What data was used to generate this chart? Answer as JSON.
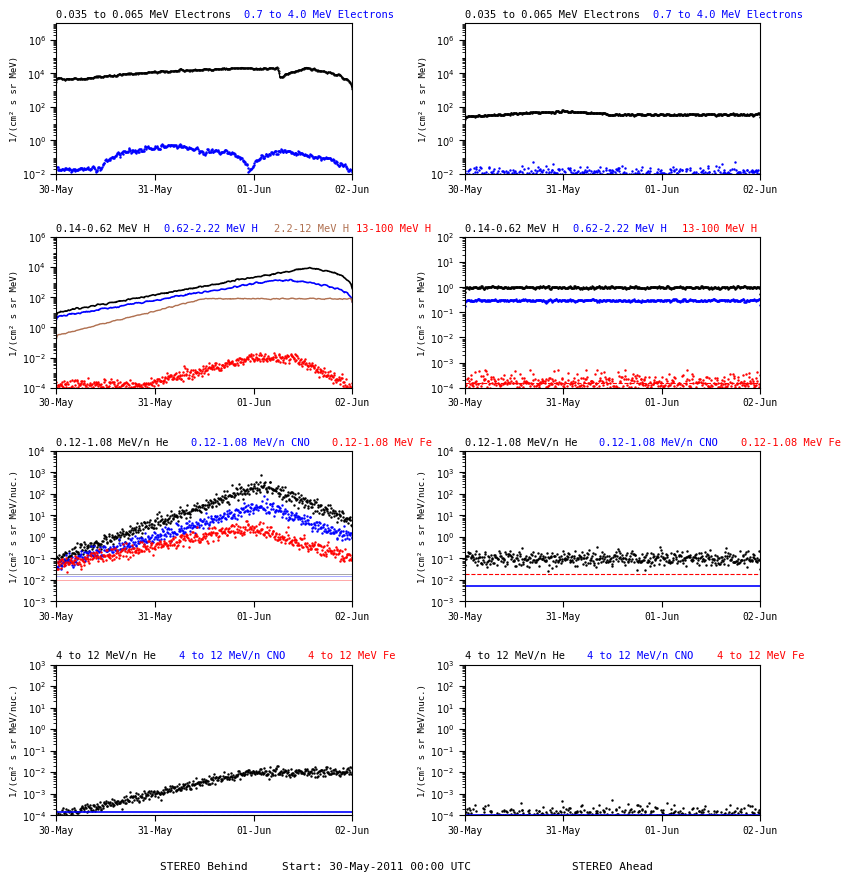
{
  "row1_left_title1": "0.035 to 0.065 MeV Electrons",
  "row1_left_title1_color": "black",
  "row1_left_title2": "0.7 to 4.0 MeV Electrons",
  "row1_left_title2_color": "blue",
  "row1_right_title1": "0.035 to 0.065 MeV Electrons",
  "row1_right_title1_color": "black",
  "row1_right_title2": "0.7 to 4.0 MeV Electrons",
  "row1_right_title2_color": "blue",
  "row2_left_titles": [
    "0.14-0.62 MeV H",
    "0.62-2.22 MeV H",
    "2.2-12 MeV H",
    "13-100 MeV H"
  ],
  "row2_left_colors": [
    "black",
    "blue",
    "#b07050",
    "red"
  ],
  "row2_right_titles": [
    "0.14-0.62 MeV H",
    "0.62-2.22 MeV H",
    "13-100 MeV H"
  ],
  "row2_right_colors": [
    "black",
    "blue",
    "red"
  ],
  "row3_left_titles": [
    "0.12-1.08 MeV/n He",
    "0.12-1.08 MeV/n CNO",
    "0.12-1.08 MeV Fe"
  ],
  "row3_left_colors": [
    "black",
    "blue",
    "red"
  ],
  "row3_right_titles": [
    "0.12-1.08 MeV/n He",
    "0.12-1.08 MeV/n CNO",
    "0.12-1.08 MeV Fe"
  ],
  "row3_right_colors": [
    "black",
    "blue",
    "red"
  ],
  "row4_left_titles": [
    "4 to 12 MeV/n He",
    "4 to 12 MeV/n CNO",
    "4 to 12 MeV Fe"
  ],
  "row4_left_colors": [
    "black",
    "blue",
    "red"
  ],
  "row4_right_titles": [
    "4 to 12 MeV/n He",
    "4 to 12 MeV/n CNO",
    "4 to 12 MeV Fe"
  ],
  "row4_right_colors": [
    "black",
    "blue",
    "red"
  ],
  "xlabel_left": "STEREO Behind",
  "xlabel_right": "STEREO Ahead",
  "xlabel_center": "Start: 30-May-2011 00:00 UTC",
  "xtick_labels": [
    "30-May",
    "31-May",
    "01-Jun",
    "02-Jun"
  ],
  "ylabel_electrons": "1/(cm² s sr MeV)",
  "ylabel_H": "1/(cm² s sr MeV)",
  "ylabel_heavy": "1/(cm² s sr MeV/nuc.)"
}
